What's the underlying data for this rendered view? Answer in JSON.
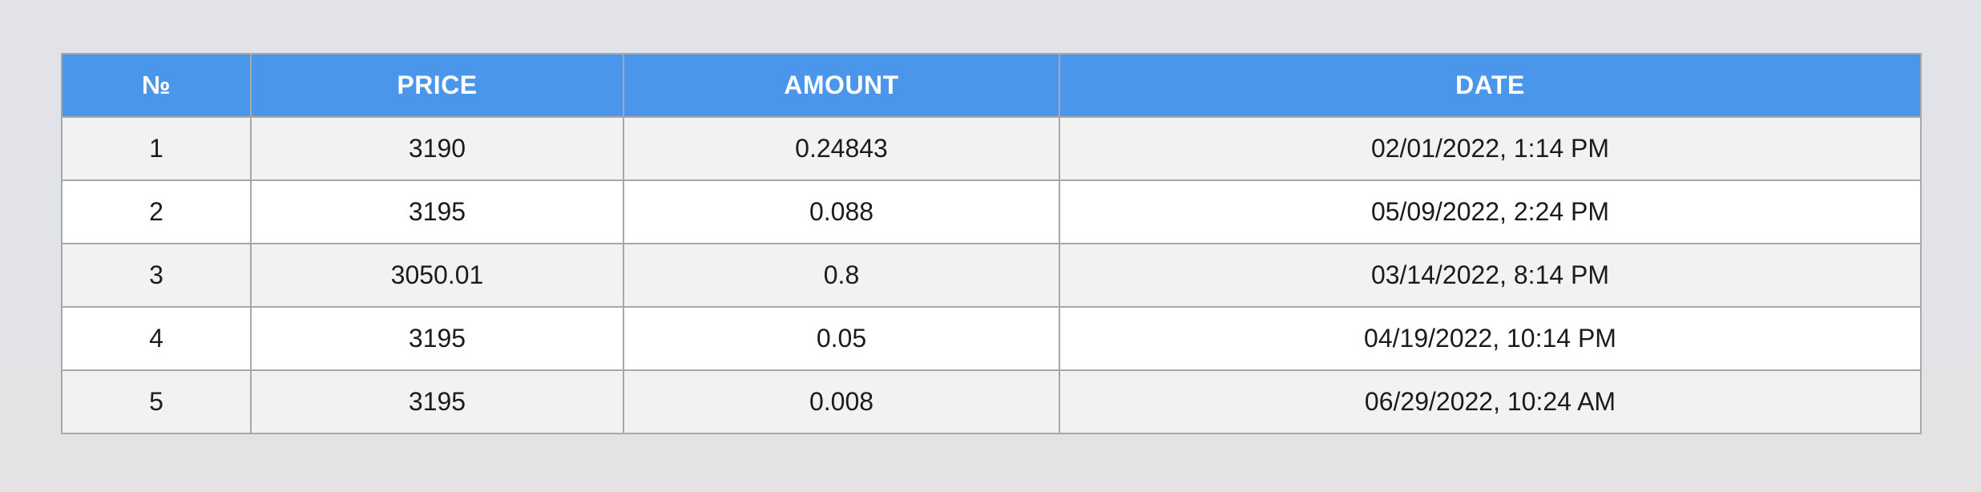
{
  "table": {
    "headers": [
      "№",
      "PRICE",
      "AMOUNT",
      "DATE"
    ],
    "rows": [
      [
        "1",
        "3190",
        "0.24843",
        "02/01/2022, 1:14 PM"
      ],
      [
        "2",
        "3195",
        "0.088",
        "05/09/2022, 2:24 PM"
      ],
      [
        "3",
        "3050.01",
        "0.8",
        "03/14/2022, 8:14 PM"
      ],
      [
        "4",
        "3195",
        "0.05",
        "04/19/2022, 10:14 PM"
      ],
      [
        "5",
        "3195",
        "0.008",
        "06/29/2022, 10:24 AM"
      ]
    ]
  },
  "colors": {
    "header_bg": "#4a96ea",
    "header_text": "#ffffff",
    "row_odd_bg": "#f2f2f2",
    "row_even_bg": "#ffffff",
    "border": "#a8a8a8",
    "page_bg": "#e2e3e8"
  }
}
